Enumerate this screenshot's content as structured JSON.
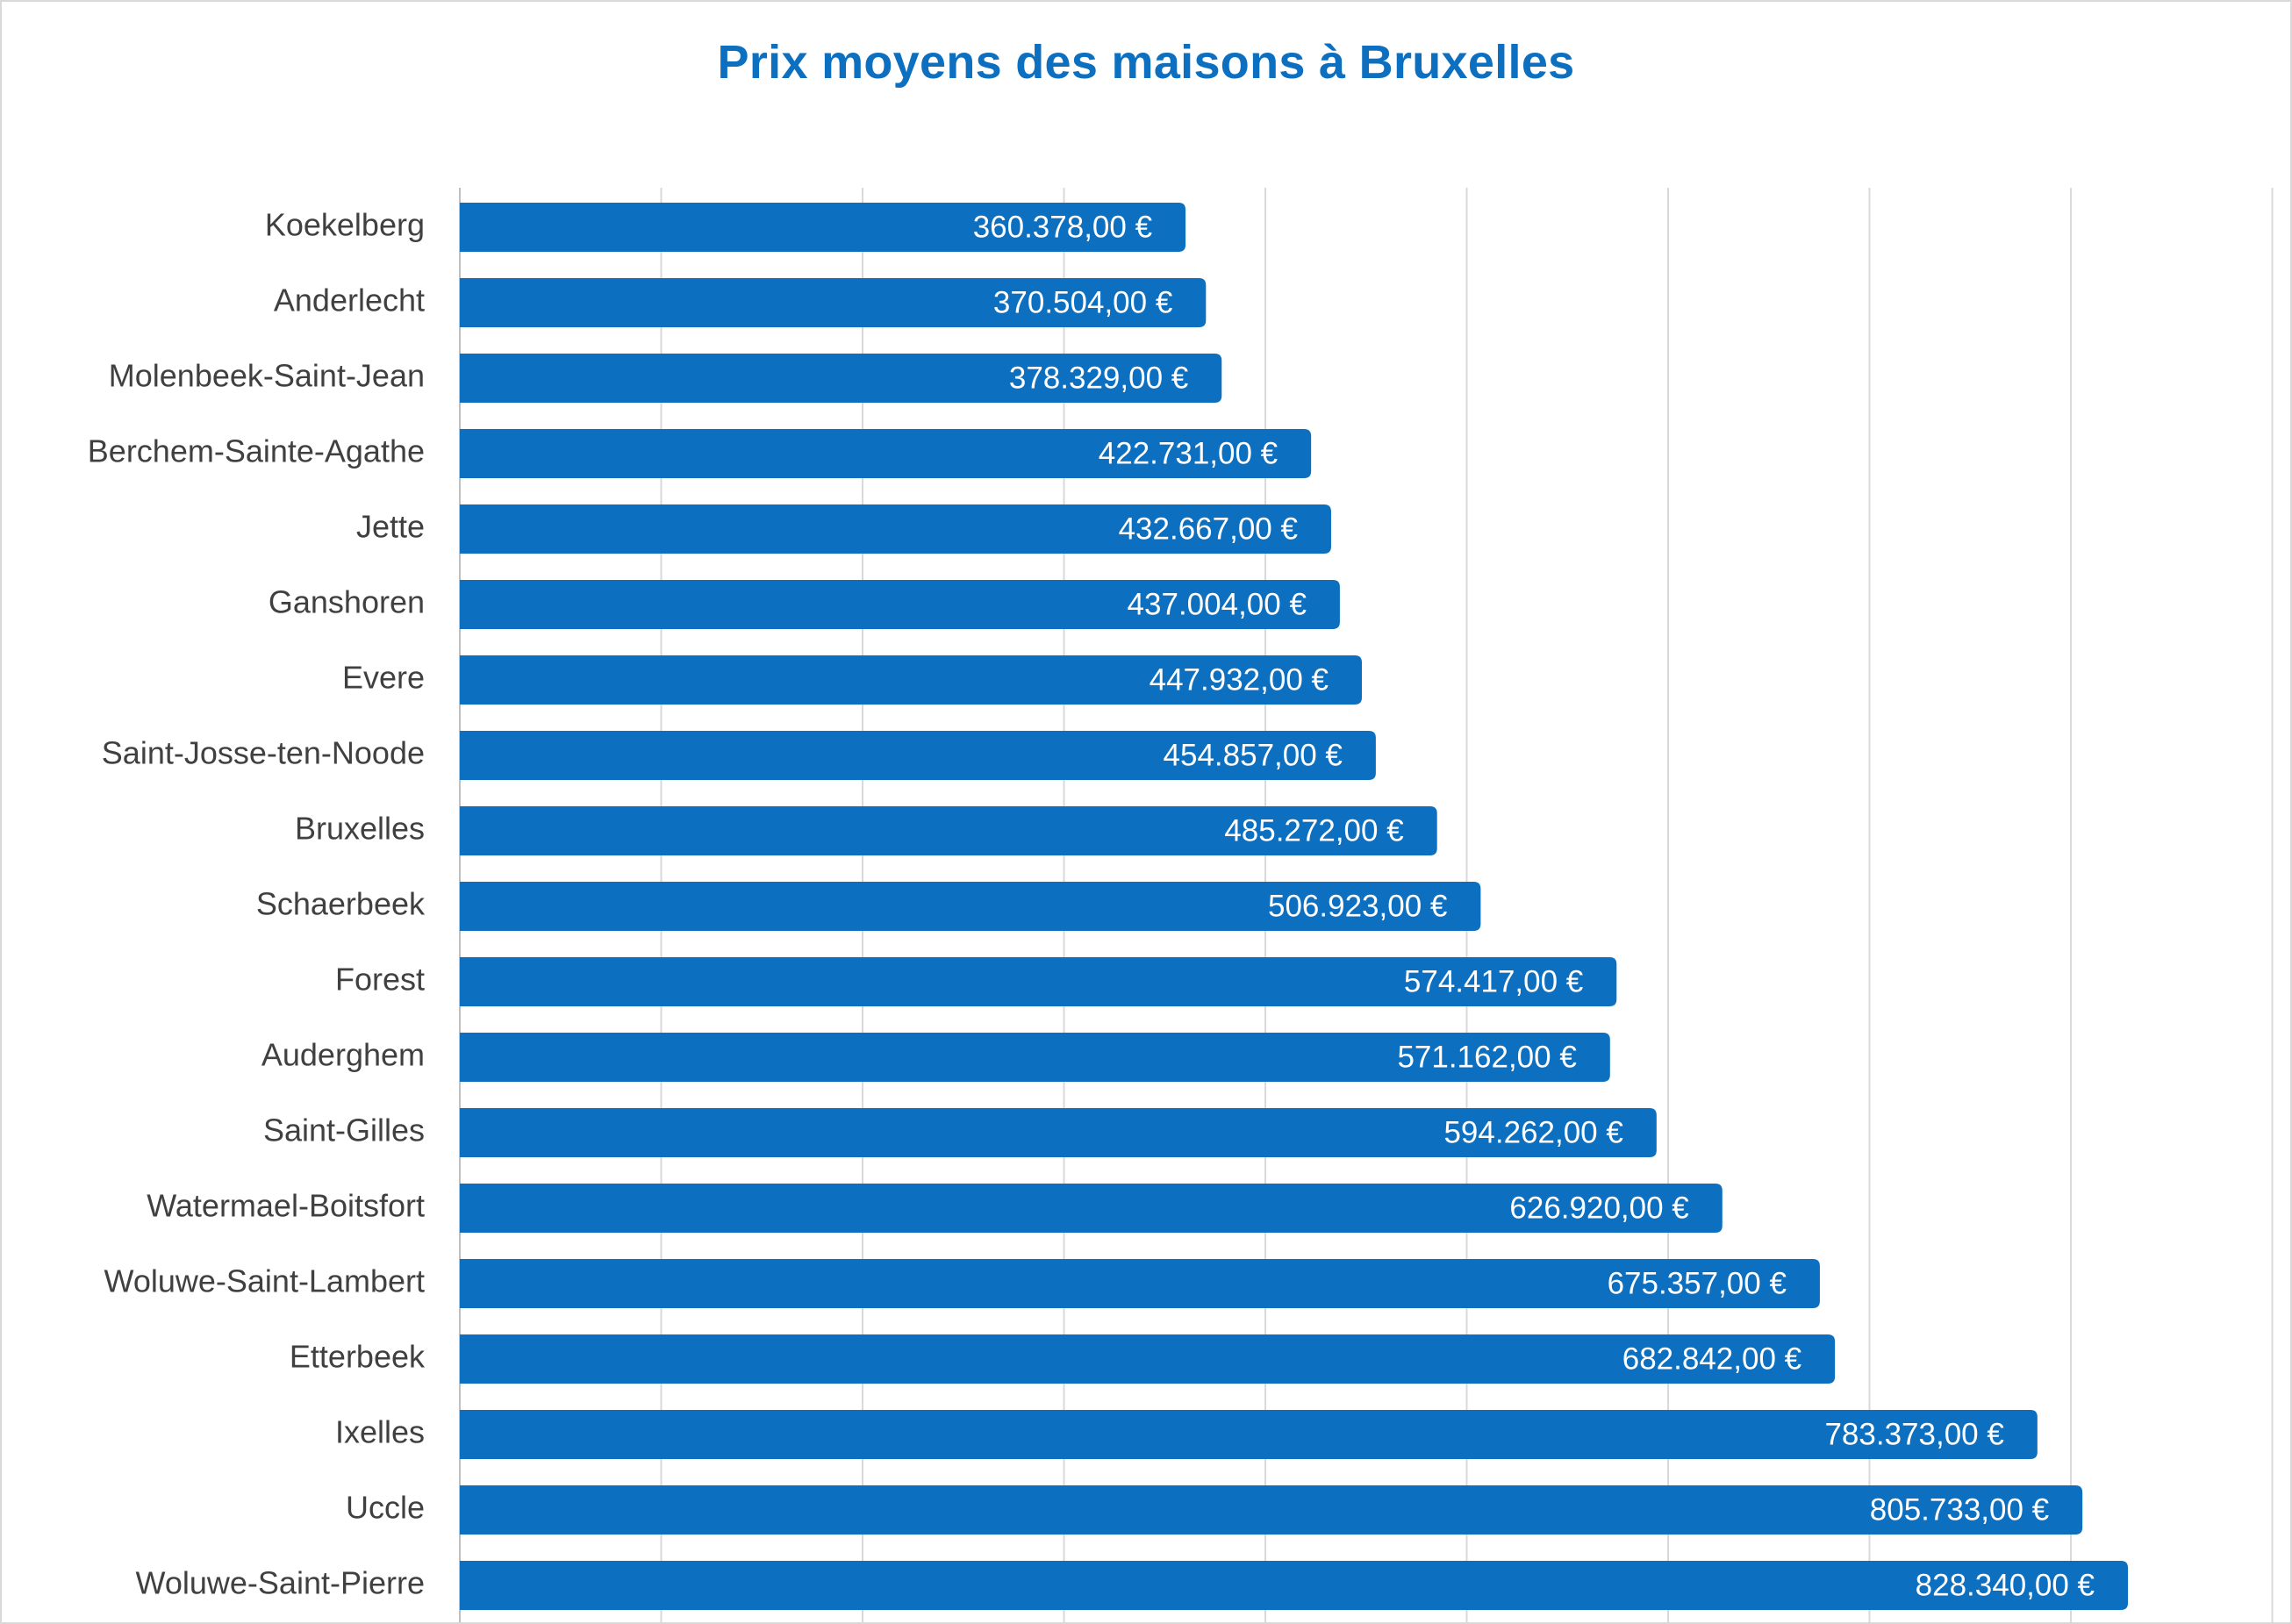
{
  "chart_data": {
    "type": "bar",
    "orientation": "horizontal",
    "title": "Prix moyens des maisons à Bruxelles",
    "xlabel": "",
    "ylabel": "",
    "xlim": [
      0,
      900000
    ],
    "grid": true,
    "legend": "none",
    "bar_color": "#0d6fc0",
    "title_color": "#0d6fc0",
    "categories": [
      "Koekelberg",
      "Anderlecht",
      "Molenbeek-Saint-Jean",
      "Berchem-Sainte-Agathe",
      "Jette",
      "Ganshoren",
      "Evere",
      "Saint-Josse-ten-Noode",
      "Bruxelles",
      "Schaerbeek",
      "Forest",
      "Auderghem",
      "Saint-Gilles",
      "Watermael-Boitsfort",
      "Woluwe-Saint-Lambert",
      "Etterbeek",
      "Ixelles",
      "Uccle",
      "Woluwe-Saint-Pierre"
    ],
    "values": [
      360378,
      370504,
      378329,
      422731,
      432667,
      437004,
      447932,
      454857,
      485272,
      506923,
      574417,
      571162,
      594262,
      626920,
      675357,
      682842,
      783373,
      805733,
      828340
    ],
    "value_labels": [
      "360.378,00 €",
      "370.504,00 €",
      "378.329,00 €",
      "422.731,00 €",
      "432.667,00 €",
      "437.004,00 €",
      "447.932,00 €",
      "454.857,00 €",
      "485.272,00 €",
      "506.923,00 €",
      "574.417,00 €",
      "571.162,00 €",
      "594.262,00 €",
      "626.920,00 €",
      "675.357,00 €",
      "682.842,00 €",
      "783.373,00 €",
      "805.733,00 €",
      "828.340,00 €"
    ]
  }
}
